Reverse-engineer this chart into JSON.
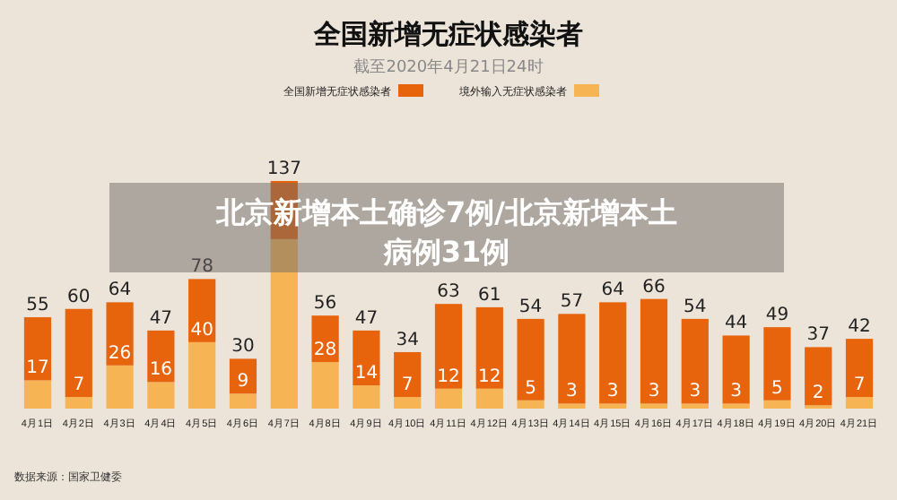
{
  "chart_data": {
    "type": "bar",
    "stacked": true,
    "title": "全国新增无症状感染者",
    "subtitle": "截至2020年4月21日24时",
    "categories": [
      "4月1日",
      "4月2日",
      "4月3日",
      "4月4日",
      "4月5日",
      "4月6日",
      "4月7日",
      "4月8日",
      "4月9日",
      "4月10日",
      "4月11日",
      "4月12日",
      "4月13日",
      "4月14日",
      "4月15日",
      "4月16日",
      "4月17日",
      "4月18日",
      "4月19日",
      "4月20日",
      "4月21日"
    ],
    "series": [
      {
        "name": "境外输入无症状感染者",
        "color": "#f6b455",
        "values": [
          17,
          7,
          26,
          16,
          40,
          9,
          102,
          28,
          14,
          7,
          12,
          12,
          5,
          3,
          3,
          3,
          3,
          3,
          5,
          2,
          7
        ],
        "value_labels": [
          "17",
          "7",
          "26",
          "16",
          "40",
          "9",
          null,
          "28",
          "14",
          "7",
          "12",
          "12",
          "5",
          "3",
          "3",
          "3",
          "3",
          "3",
          "5",
          "2",
          "7"
        ]
      },
      {
        "name": "全国新增无症状感染者",
        "color": "#e8640c",
        "values": [
          38,
          53,
          38,
          31,
          38,
          21,
          35,
          28,
          33,
          27,
          51,
          49,
          49,
          54,
          61,
          63,
          51,
          41,
          44,
          35,
          35
        ]
      }
    ],
    "totals": [
      "55",
      "60",
      "64",
      "47",
      "78",
      "30",
      "137",
      "56",
      "47",
      "34",
      "63",
      "61",
      "54",
      "57",
      "64",
      "66",
      "54",
      "44",
      "49",
      "37",
      "42"
    ],
    "legend": "top",
    "annotations": [
      "北京新增本土确诊7例/北京新增本土病例31例",
      "数据来源：国家卫健委"
    ]
  }
}
